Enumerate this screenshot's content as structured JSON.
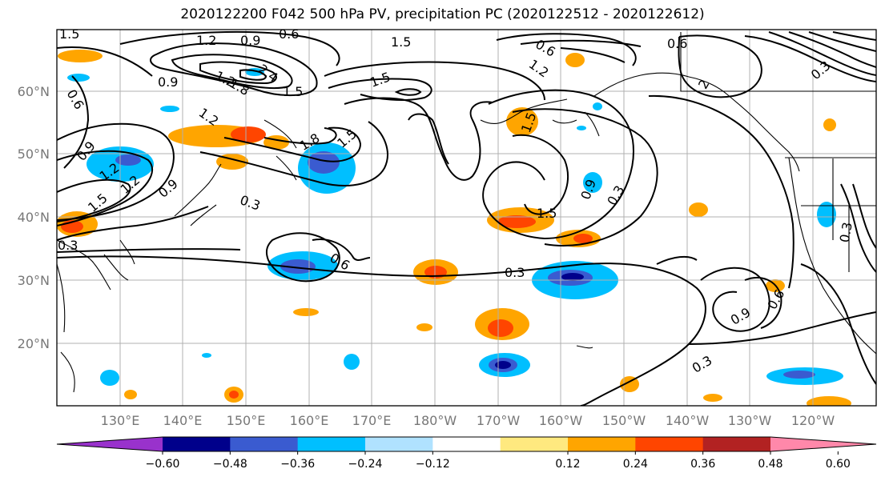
{
  "title": "2020122200 F042 500 hPa PV, precipitation PC (2020122512 - 2020122612)",
  "chart_data": {
    "type": "map",
    "lon_ticks": [
      "130°E",
      "140°E",
      "150°E",
      "160°E",
      "170°E",
      "180°W",
      "170°W",
      "160°W",
      "150°W",
      "140°W",
      "130°W",
      "120°W"
    ],
    "lat_ticks": [
      "60°N",
      "50°N",
      "40°N",
      "30°N",
      "20°N"
    ],
    "grid": true,
    "contour_labels": [
      "1.5",
      "1.2",
      "0.9",
      "0.6",
      "0.6",
      "1.2",
      "2.4",
      "1.8",
      "1.5",
      "1.5",
      "1.5",
      "0.9",
      "1.2",
      "1.2",
      "1.8",
      "1.5",
      "1.5",
      "0.9",
      "1.2",
      "0.9",
      "1.5",
      "0.3",
      "0.3",
      "0.6",
      "0.3",
      "0.9",
      "0.3",
      "1.5",
      "0.6",
      "1.2",
      "2",
      "0.6",
      "0.3",
      "0.3",
      "0.9",
      "0.6",
      "0.3"
    ],
    "colorbar": {
      "colors": [
        "#9932cc",
        "#00008b",
        "#3a5bd0",
        "#00bfff",
        "#b0e2ff",
        "#ffffff",
        "#ffe97f",
        "#ffa500",
        "#ff4500",
        "#b22222",
        "#ff88aa"
      ],
      "tick_labels": [
        "−0.60",
        "−0.48",
        "−0.36",
        "−0.24",
        "−0.12",
        "0.12",
        "0.24",
        "0.36",
        "0.48",
        "0.60"
      ],
      "extend": "both"
    }
  }
}
